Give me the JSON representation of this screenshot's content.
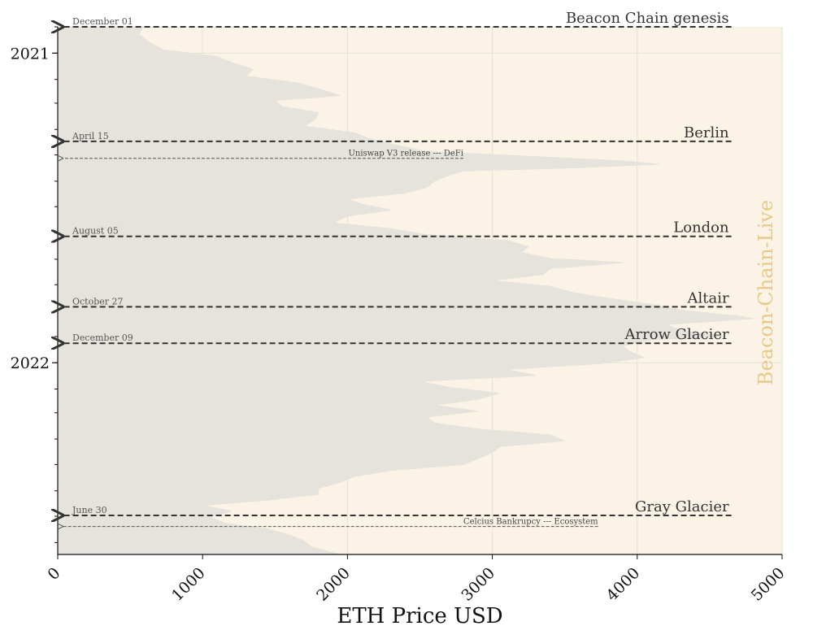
{
  "chart_data": {
    "type": "area",
    "orientation": "horizontal",
    "xlabel": "ETH Price USD",
    "xlim": [
      0,
      5000
    ],
    "x_ticks": [
      "0",
      "1000",
      "2000",
      "3000",
      "4000",
      "5000"
    ],
    "y_range": [
      "2020-12-01",
      "2022-08-15"
    ],
    "y_year_labels": [
      {
        "label": "2021",
        "date": "2021-01-01"
      },
      {
        "label": "2022",
        "date": "2022-01-01"
      }
    ],
    "grid": true,
    "watermark": "Beacon-Chain-Live",
    "series": [
      {
        "points": [
          [
            "2020-12-01",
            590
          ],
          [
            "2020-12-10",
            560
          ],
          [
            "2020-12-20",
            640
          ],
          [
            "2020-12-28",
            730
          ],
          [
            "2021-01-05",
            1100
          ],
          [
            "2021-01-12",
            1200
          ],
          [
            "2021-01-20",
            1350
          ],
          [
            "2021-01-28",
            1300
          ],
          [
            "2021-02-05",
            1650
          ],
          [
            "2021-02-12",
            1800
          ],
          [
            "2021-02-20",
            1950
          ],
          [
            "2021-02-26",
            1500
          ],
          [
            "2021-03-05",
            1550
          ],
          [
            "2021-03-12",
            1800
          ],
          [
            "2021-03-20",
            1780
          ],
          [
            "2021-03-28",
            1700
          ],
          [
            "2021-04-05",
            2050
          ],
          [
            "2021-04-12",
            2150
          ],
          [
            "2021-04-20",
            2350
          ],
          [
            "2021-04-27",
            2550
          ],
          [
            "2021-05-03",
            3300
          ],
          [
            "2021-05-08",
            3900
          ],
          [
            "2021-05-12",
            4150
          ],
          [
            "2021-05-16",
            3600
          ],
          [
            "2021-05-20",
            2800
          ],
          [
            "2021-05-25",
            2700
          ],
          [
            "2021-06-01",
            2600
          ],
          [
            "2021-06-08",
            2550
          ],
          [
            "2021-06-15",
            2400
          ],
          [
            "2021-06-22",
            2000
          ],
          [
            "2021-06-28",
            2100
          ],
          [
            "2021-07-05",
            2300
          ],
          [
            "2021-07-12",
            2000
          ],
          [
            "2021-07-20",
            1900
          ],
          [
            "2021-07-27",
            2300
          ],
          [
            "2021-08-03",
            2550
          ],
          [
            "2021-08-10",
            3100
          ],
          [
            "2021-08-17",
            3250
          ],
          [
            "2021-08-24",
            3200
          ],
          [
            "2021-08-31",
            3400
          ],
          [
            "2021-09-05",
            3900
          ],
          [
            "2021-09-12",
            3400
          ],
          [
            "2021-09-19",
            3350
          ],
          [
            "2021-09-26",
            3000
          ],
          [
            "2021-10-03",
            3400
          ],
          [
            "2021-10-10",
            3550
          ],
          [
            "2021-10-17",
            3800
          ],
          [
            "2021-10-24",
            4100
          ],
          [
            "2021-10-31",
            4300
          ],
          [
            "2021-11-07",
            4700
          ],
          [
            "2021-11-10",
            4800
          ],
          [
            "2021-11-17",
            4200
          ],
          [
            "2021-11-24",
            4300
          ],
          [
            "2021-12-01",
            4600
          ],
          [
            "2021-12-05",
            4100
          ],
          [
            "2021-12-12",
            3900
          ],
          [
            "2021-12-19",
            3950
          ],
          [
            "2021-12-26",
            4050
          ],
          [
            "2022-01-02",
            3750
          ],
          [
            "2022-01-09",
            3100
          ],
          [
            "2022-01-16",
            3300
          ],
          [
            "2022-01-23",
            2500
          ],
          [
            "2022-01-30",
            2700
          ],
          [
            "2022-02-06",
            3050
          ],
          [
            "2022-02-13",
            2900
          ],
          [
            "2022-02-20",
            2600
          ],
          [
            "2022-02-27",
            2900
          ],
          [
            "2022-03-06",
            2550
          ],
          [
            "2022-03-13",
            2600
          ],
          [
            "2022-03-20",
            2900
          ],
          [
            "2022-03-27",
            3400
          ],
          [
            "2022-04-03",
            3500
          ],
          [
            "2022-04-10",
            3050
          ],
          [
            "2022-04-17",
            3000
          ],
          [
            "2022-04-24",
            2900
          ],
          [
            "2022-05-01",
            2800
          ],
          [
            "2022-05-08",
            2300
          ],
          [
            "2022-05-15",
            2050
          ],
          [
            "2022-05-22",
            1950
          ],
          [
            "2022-05-29",
            1800
          ],
          [
            "2022-06-05",
            1800
          ],
          [
            "2022-06-12",
            1450
          ],
          [
            "2022-06-18",
            1000
          ],
          [
            "2022-06-25",
            1200
          ],
          [
            "2022-07-02",
            1050
          ],
          [
            "2022-07-09",
            1150
          ],
          [
            "2022-07-16",
            1450
          ],
          [
            "2022-07-23",
            1600
          ],
          [
            "2022-07-30",
            1700
          ],
          [
            "2022-08-06",
            1750
          ],
          [
            "2022-08-13",
            1900
          ],
          [
            "2022-08-15",
            1950
          ]
        ]
      }
    ],
    "events": [
      {
        "name": "Beacon Chain genesis",
        "date_label": "December 01",
        "date": "2020-12-01",
        "price": 4650
      },
      {
        "name": "Berlin",
        "date_label": "April 15",
        "date": "2021-04-15",
        "price": 4650
      },
      {
        "name": "London",
        "date_label": "August 05",
        "date": "2021-08-05",
        "price": 4650
      },
      {
        "name": "Altair",
        "date_label": "October 27",
        "date": "2021-10-27",
        "price": 4650
      },
      {
        "name": "Arrow Glacier",
        "date_label": "December 09",
        "date": "2021-12-09",
        "price": 4650
      },
      {
        "name": "Gray Glacier",
        "date_label": "June 30",
        "date": "2022-06-30",
        "price": 4650
      }
    ],
    "annotations": [
      {
        "text": "Uniswap V3 release --- DeFi",
        "date": "2021-05-05",
        "price": 2800
      },
      {
        "text": "Celcius Bankrupcy --- Ecosystem",
        "date": "2022-07-13",
        "price": 3730
      }
    ]
  },
  "colors": {
    "plot_background": "#fbf4e6",
    "area_fill": "#e5e3dc",
    "event_line": "#333333",
    "annotation_line": "#555555",
    "watermark": "#e8c98a",
    "grid": "#e6e1d6"
  }
}
